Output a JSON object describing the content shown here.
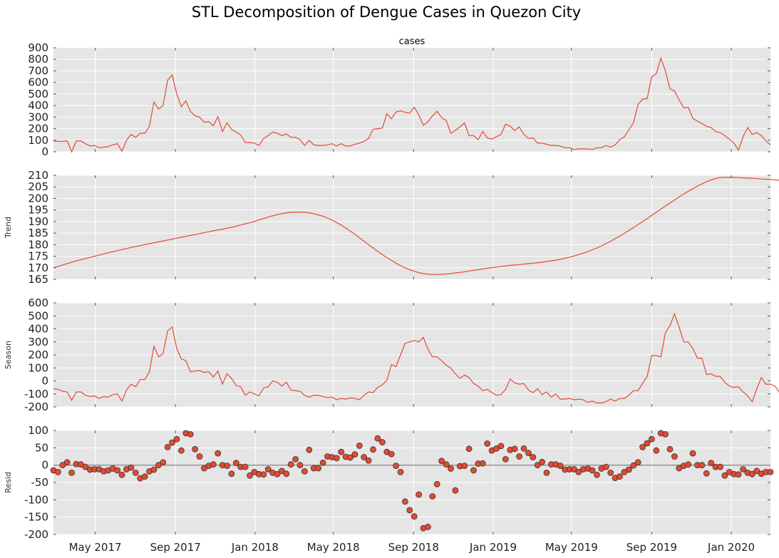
{
  "figure": {
    "suptitle": "STL Decomposition of Dengue Cases in Quezon City"
  },
  "colors": {
    "line": "#e24a33",
    "panel_bg": "#e5e5e5",
    "grid": "#ffffff",
    "zero_line": "#8c8c8c",
    "marker_edge": "#333333"
  },
  "x_axis": {
    "start": "2017-02-26",
    "step_days": 7,
    "tick_labels": [
      "May 2017",
      "Sep 2017",
      "Jan 2018",
      "May 2018",
      "Sep 2018",
      "Jan 2019",
      "May 2019",
      "Sep 2019",
      "Jan 2020"
    ],
    "tick_dates": [
      "2017-05-01",
      "2017-09-01",
      "2018-01-01",
      "2018-05-01",
      "2018-09-01",
      "2019-01-01",
      "2019-05-01",
      "2019-09-01",
      "2020-01-01"
    ]
  },
  "chart_data": [
    {
      "type": "line",
      "title": "cases",
      "ylabel": "",
      "ylim": [
        0,
        900
      ],
      "yticks": [
        0,
        100,
        200,
        300,
        400,
        500,
        600,
        700,
        800,
        900
      ],
      "values": [
        95,
        90,
        90,
        95,
        0,
        95,
        95,
        70,
        50,
        55,
        35,
        40,
        45,
        60,
        70,
        5,
        100,
        150,
        125,
        160,
        160,
        220,
        430,
        370,
        400,
        620,
        665,
        500,
        390,
        440,
        350,
        310,
        300,
        255,
        260,
        225,
        305,
        175,
        250,
        195,
        170,
        145,
        80,
        80,
        75,
        55,
        115,
        140,
        170,
        160,
        140,
        155,
        125,
        125,
        105,
        55,
        100,
        60,
        55,
        55,
        60,
        70,
        50,
        70,
        50,
        50,
        65,
        75,
        90,
        115,
        195,
        200,
        205,
        330,
        285,
        345,
        355,
        340,
        335,
        385,
        320,
        230,
        260,
        310,
        350,
        295,
        270,
        160,
        185,
        215,
        250,
        140,
        140,
        105,
        175,
        120,
        110,
        130,
        150,
        240,
        220,
        185,
        215,
        150,
        115,
        120,
        75,
        75,
        65,
        55,
        55,
        50,
        35,
        35,
        20,
        25,
        25,
        25,
        20,
        35,
        35,
        55,
        40,
        60,
        105,
        130,
        190,
        250,
        410,
        455,
        460,
        650,
        675,
        810,
        700,
        545,
        525,
        450,
        380,
        385,
        290,
        265,
        245,
        220,
        210,
        175,
        165,
        140,
        110,
        75,
        15,
        130,
        210,
        150,
        165,
        140,
        95,
        60
      ]
    },
    {
      "type": "line",
      "title": "",
      "ylabel": "Trend",
      "ylim": [
        165,
        210
      ],
      "yticks": [
        165,
        170,
        175,
        180,
        185,
        190,
        195,
        200,
        205,
        210
      ],
      "values": [
        170.0,
        170.6,
        171.2,
        171.8,
        172.4,
        173.0,
        173.5,
        174.0,
        174.5,
        175.0,
        175.5,
        176.0,
        176.5,
        177.0,
        177.4,
        177.9,
        178.3,
        178.8,
        179.2,
        179.6,
        180.0,
        180.4,
        180.8,
        181.2,
        181.6,
        182.0,
        182.4,
        182.8,
        183.2,
        183.6,
        184.0,
        184.4,
        184.8,
        185.2,
        185.6,
        186.0,
        186.4,
        186.7,
        187.1,
        187.5,
        188.0,
        188.5,
        189.0,
        189.5,
        190.0,
        190.7,
        191.3,
        191.9,
        192.5,
        193.0,
        193.4,
        193.8,
        194.0,
        194.1,
        194.1,
        194.0,
        193.8,
        193.4,
        192.9,
        192.3,
        191.5,
        190.6,
        189.6,
        188.5,
        187.2,
        185.9,
        184.5,
        183.0,
        181.5,
        180.0,
        178.6,
        177.1,
        175.7,
        174.4,
        173.2,
        172.0,
        170.9,
        170.0,
        169.2,
        168.5,
        167.9,
        167.5,
        167.2,
        167.1,
        167.1,
        167.2,
        167.3,
        167.5,
        167.8,
        168.0,
        168.3,
        168.6,
        168.9,
        169.2,
        169.5,
        169.8,
        170.1,
        170.3,
        170.6,
        170.8,
        171.0,
        171.2,
        171.4,
        171.6,
        171.8,
        172.0,
        172.2,
        172.4,
        172.7,
        173.0,
        173.3,
        173.7,
        174.1,
        174.6,
        175.1,
        175.7,
        176.3,
        177.0,
        177.8,
        178.6,
        179.5,
        180.5,
        181.5,
        182.6,
        183.7,
        184.9,
        186.1,
        187.4,
        188.7,
        190.0,
        191.3,
        192.7,
        194.0,
        195.4,
        196.7,
        198.0,
        199.3,
        200.6,
        201.9,
        203.1,
        204.2,
        205.3,
        206.3,
        207.2,
        208.0,
        208.6,
        209.0,
        209.1,
        209.1,
        209.1,
        209.0,
        208.9,
        208.8,
        208.7,
        208.6,
        208.4,
        208.3,
        208.2,
        208.0,
        207.9,
        207.8,
        207.6,
        207.5,
        207.4,
        207.2,
        207.1,
        207.0,
        206.9,
        206.8,
        206.6,
        206.5,
        206.4,
        206.3,
        206.2,
        206.1,
        206.0,
        205.9,
        205.7,
        205.6,
        205.5,
        205.4,
        205.3,
        205.2,
        205.1,
        205.0,
        204.9,
        204.8,
        204.7,
        204.6,
        204.5,
        204.4,
        204.3,
        204.2,
        204.1,
        204.0,
        203.8,
        203.7,
        203.6,
        203.5,
        203.3,
        203.2,
        203.0,
        202.9,
        202.7,
        202.5,
        202.3,
        202.1,
        201.9,
        201.7,
        201.4,
        201.2,
        201.0,
        200.7,
        200.5,
        200.2,
        200.0
      ]
    },
    {
      "type": "line",
      "title": "",
      "ylabel": "Season",
      "ylim": [
        -200,
        600
      ],
      "yticks": [
        -200,
        -100,
        0,
        100,
        200,
        300,
        400,
        500,
        600
      ],
      "values": [
        -60,
        -65,
        -80,
        -85,
        -150,
        -85,
        -85,
        -110,
        -120,
        -115,
        -135,
        -120,
        -125,
        -105,
        -100,
        -155,
        -70,
        -25,
        -45,
        10,
        10,
        70,
        265,
        185,
        210,
        385,
        415,
        250,
        170,
        155,
        70,
        75,
        80,
        65,
        70,
        30,
        75,
        -25,
        55,
        20,
        -35,
        -45,
        -110,
        -85,
        -100,
        -115,
        -55,
        -45,
        0,
        -10,
        -40,
        -10,
        -70,
        -75,
        -80,
        -110,
        -125,
        -110,
        -110,
        -120,
        -130,
        -125,
        -145,
        -135,
        -140,
        -130,
        -135,
        -145,
        -110,
        -85,
        -90,
        -50,
        -30,
        5,
        125,
        110,
        200,
        290,
        300,
        310,
        300,
        335,
        245,
        185,
        185,
        155,
        120,
        100,
        55,
        20,
        45,
        25,
        -20,
        -40,
        -75,
        -65,
        -90,
        -110,
        -105,
        -65,
        15,
        -15,
        -25,
        -20,
        -70,
        -90,
        -60,
        -105,
        -85,
        -125,
        -100,
        -140,
        -140,
        -135,
        -145,
        -140,
        -145,
        -165,
        -155,
        -170,
        -170,
        -160,
        -140,
        -155,
        -135,
        -135,
        -110,
        -75,
        -75,
        -20,
        35,
        195,
        195,
        185,
        370,
        425,
        515,
        415,
        300,
        300,
        250,
        175,
        175,
        50,
        55,
        35,
        35,
        -10,
        -40,
        -50,
        -45,
        -85,
        -115,
        -160,
        -60,
        25,
        -25,
        -25,
        -40,
        -90,
        -115
      ]
    },
    {
      "type": "scatter",
      "title": "",
      "ylabel": "Resid",
      "ylim": [
        -200,
        100
      ],
      "yticks": [
        -200,
        -150,
        -100,
        -50,
        0,
        50,
        100
      ],
      "values": [
        -15,
        -20,
        0,
        8,
        -22,
        3,
        2,
        -5,
        -13,
        -12,
        -12,
        -18,
        -15,
        -10,
        -15,
        -28,
        -12,
        -7,
        -22,
        -38,
        -33,
        -18,
        -13,
        0,
        8,
        52,
        65,
        75,
        42,
        92,
        89,
        46,
        25,
        -9,
        -2,
        2,
        34,
        0,
        -2,
        -25,
        6,
        -5,
        -5,
        -30,
        -20,
        -26,
        -27,
        -12,
        -22,
        -26,
        -17,
        -25,
        2,
        17,
        0,
        -18,
        44,
        -9,
        -9,
        7,
        25,
        23,
        20,
        38,
        24,
        22,
        31,
        56,
        23,
        13,
        45,
        77,
        66,
        38,
        32,
        -2,
        -20,
        -105,
        -130,
        -148,
        -85,
        -182,
        -178,
        -90,
        -55,
        12,
        2,
        -10,
        -73,
        -3,
        -2,
        47,
        -15,
        4,
        5,
        62,
        42,
        48,
        55,
        17,
        44,
        47,
        25,
        48,
        35,
        23,
        0,
        9,
        -22,
        2,
        2,
        -2,
        -13,
        -12,
        -12,
        -20,
        -12,
        -10,
        -15,
        -28,
        -10,
        -5,
        -22,
        -37,
        -33,
        -20,
        -13,
        -1,
        8,
        52,
        63,
        75,
        42,
        92,
        89,
        46,
        25,
        -9,
        -2,
        2,
        34,
        0,
        0,
        -24,
        6,
        -5,
        -5,
        -30,
        -20,
        -26,
        -27,
        -12,
        -22,
        -26,
        -17,
        -25,
        -20,
        -20
      ]
    }
  ]
}
